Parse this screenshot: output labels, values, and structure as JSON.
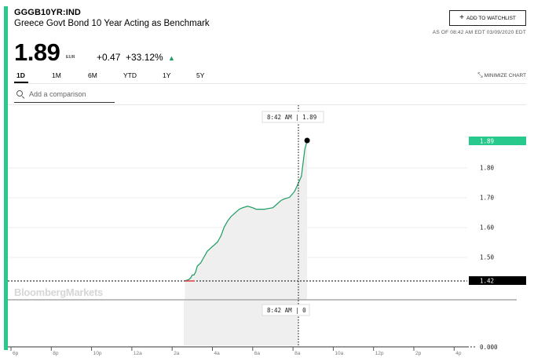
{
  "header": {
    "ticker": "GGGB10YR:IND",
    "name": "Greece Govt Bond 10 Year Acting as Benchmark",
    "watchlist_label": "ADD TO WATCHLIST",
    "as_of": "AS OF 08:42 AM EDT 03/09/2020 EDT"
  },
  "quote": {
    "price": "1.89",
    "currency": "EUR",
    "change": "+0.47",
    "change_pct": "+33.12%",
    "direction": "up"
  },
  "tabs": [
    {
      "label": "1D",
      "active": true
    },
    {
      "label": "1M",
      "active": false
    },
    {
      "label": "6M",
      "active": false
    },
    {
      "label": "YTD",
      "active": false
    },
    {
      "label": "1Y",
      "active": false
    },
    {
      "label": "5Y",
      "active": false
    }
  ],
  "minimize_label": "MINIMIZE CHART",
  "compare": {
    "placeholder": "Add a comparison"
  },
  "watermark": "BloombergMarkets",
  "colors": {
    "accent": "#28c98c",
    "up": "#1a9c60",
    "fill": "#efefef",
    "baseline": "#e23b3b",
    "current": "#000000"
  },
  "chart_data": {
    "type": "line",
    "x_ticks": [
      "6p",
      "8p",
      "10p",
      "12a",
      "2a",
      "4a",
      "6a",
      "8a",
      "10a",
      "12p",
      "2p",
      "4p"
    ],
    "y_ticks": [
      "1.80",
      "1.70",
      "1.60",
      "1.50"
    ],
    "current_value": "1.89",
    "previous_close": "1.42",
    "volume_label": "0.000",
    "crosshair_price_label": "8:42 AM | 1.89",
    "crosshair_volume_label": "8:42 AM | 0",
    "ylim": [
      1.42,
      1.89
    ],
    "series": [
      {
        "x": [
          "02:38",
          "02:50",
          "02:55",
          "03:00",
          "03:05",
          "03:10",
          "03:15",
          "03:25",
          "03:35",
          "03:45",
          "04:00",
          "04:15",
          "04:25",
          "04:35",
          "04:45",
          "04:55",
          "05:05",
          "05:20",
          "05:30",
          "05:45",
          "06:00",
          "06:10",
          "06:20",
          "06:35",
          "06:45",
          "07:00",
          "07:15",
          "07:25",
          "07:35",
          "07:50",
          "08:05",
          "08:15",
          "08:25",
          "08:35",
          "08:42"
        ],
        "values": [
          1.42,
          1.425,
          1.43,
          1.44,
          1.44,
          1.45,
          1.47,
          1.48,
          1.5,
          1.52,
          1.535,
          1.55,
          1.57,
          1.6,
          1.62,
          1.635,
          1.645,
          1.66,
          1.665,
          1.67,
          1.665,
          1.66,
          1.66,
          1.66,
          1.662,
          1.665,
          1.68,
          1.69,
          1.695,
          1.7,
          1.72,
          1.745,
          1.77,
          1.86,
          1.89
        ]
      }
    ]
  }
}
